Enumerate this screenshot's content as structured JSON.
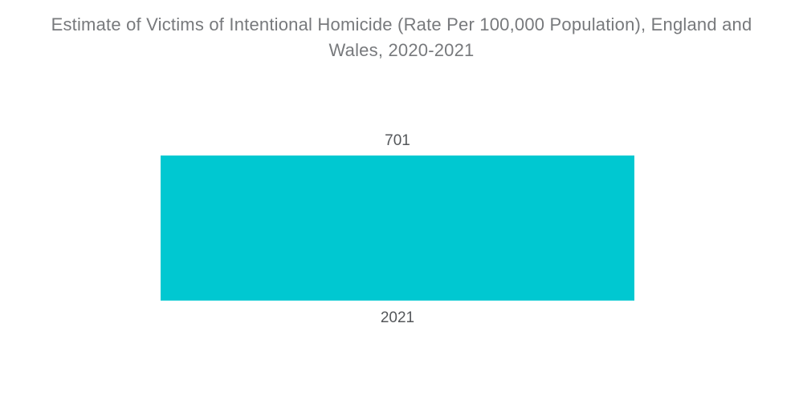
{
  "title": {
    "line1": "Estimate of Victims of Intentional Homicide (Rate Per 100,000 Population), England and",
    "line2": "Wales, 2020-2021"
  },
  "chart_data": {
    "type": "bar",
    "title": "Estimate of Victims of Intentional Homicide (Rate Per 100,000 Population), England and Wales, 2020-2021",
    "categories": [
      "2021"
    ],
    "values": [
      701
    ],
    "value_labels": [
      "701"
    ],
    "series_name": "Estimate of Victims of Intentional Homicide (Rate Per 100,000 Population)",
    "xlabel": "",
    "ylabel": "",
    "orientation": "vertical",
    "grid": false,
    "legend": false,
    "axes_visible": false,
    "colors": {
      "bar": "#00c8d1",
      "title_text": "#77797c",
      "label_text": "#54575a",
      "background": "#ffffff"
    }
  }
}
